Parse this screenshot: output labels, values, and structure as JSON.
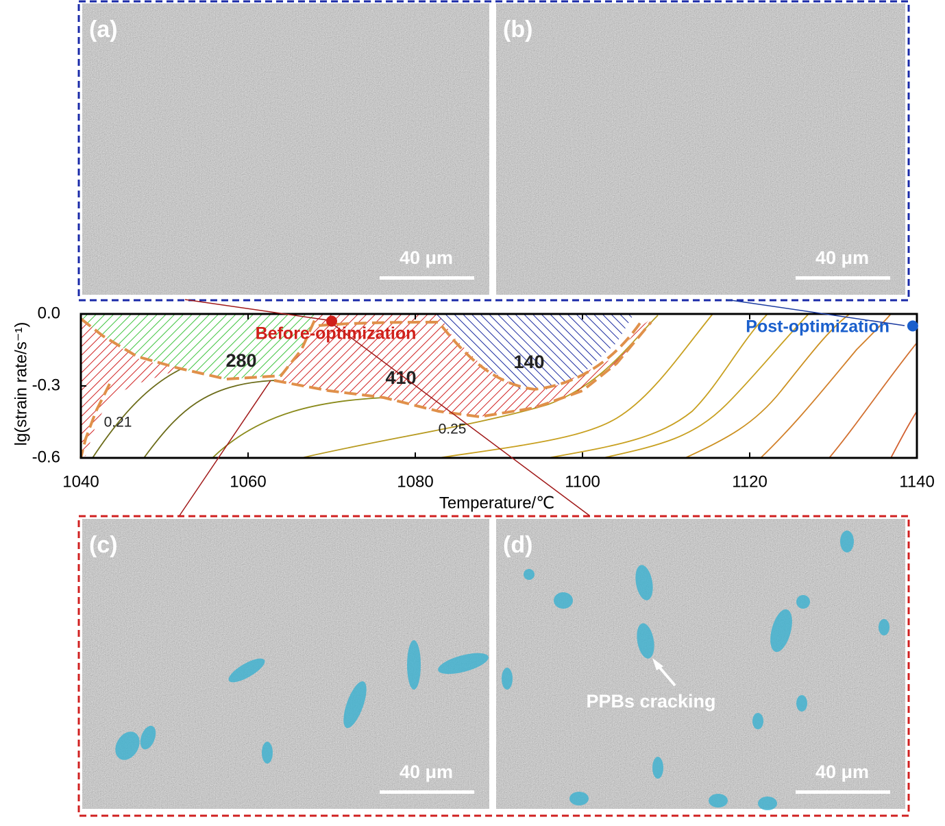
{
  "panels": [
    {
      "label": "(a)",
      "scale_bar": "40 μm"
    },
    {
      "label": "(b)",
      "scale_bar": "40 μm"
    },
    {
      "label": "(c)",
      "scale_bar": "40 μm"
    },
    {
      "label": "(d)",
      "scale_bar": "40 μm",
      "annotation": "PPBs cracking"
    }
  ],
  "chart_data": {
    "type": "processing-map",
    "xlabel": "Temperature/℃",
    "ylabel": "lg(strain rate/s⁻¹)",
    "xlim": [
      1040,
      1140
    ],
    "xticks": [
      1040,
      1060,
      1080,
      1100,
      1120,
      1140
    ],
    "ylim": [
      -0.6,
      0
    ],
    "yticks": [
      {
        "value": 0,
        "label": "0.0"
      },
      {
        "value": -0.3,
        "label": "-0.3"
      },
      {
        "value": -0.6,
        "label": "-0.6"
      }
    ],
    "domains": [
      "280",
      "410",
      "140"
    ],
    "contour_labels": [
      "0.21",
      "0.25"
    ],
    "points": [
      {
        "name": "Before-optimization",
        "x": 1070,
        "y": -0.03,
        "color": "#d0201a"
      },
      {
        "name": "Post-optimization",
        "x": 1139.5,
        "y": -0.05,
        "color": "#1a5fcc"
      }
    ]
  }
}
